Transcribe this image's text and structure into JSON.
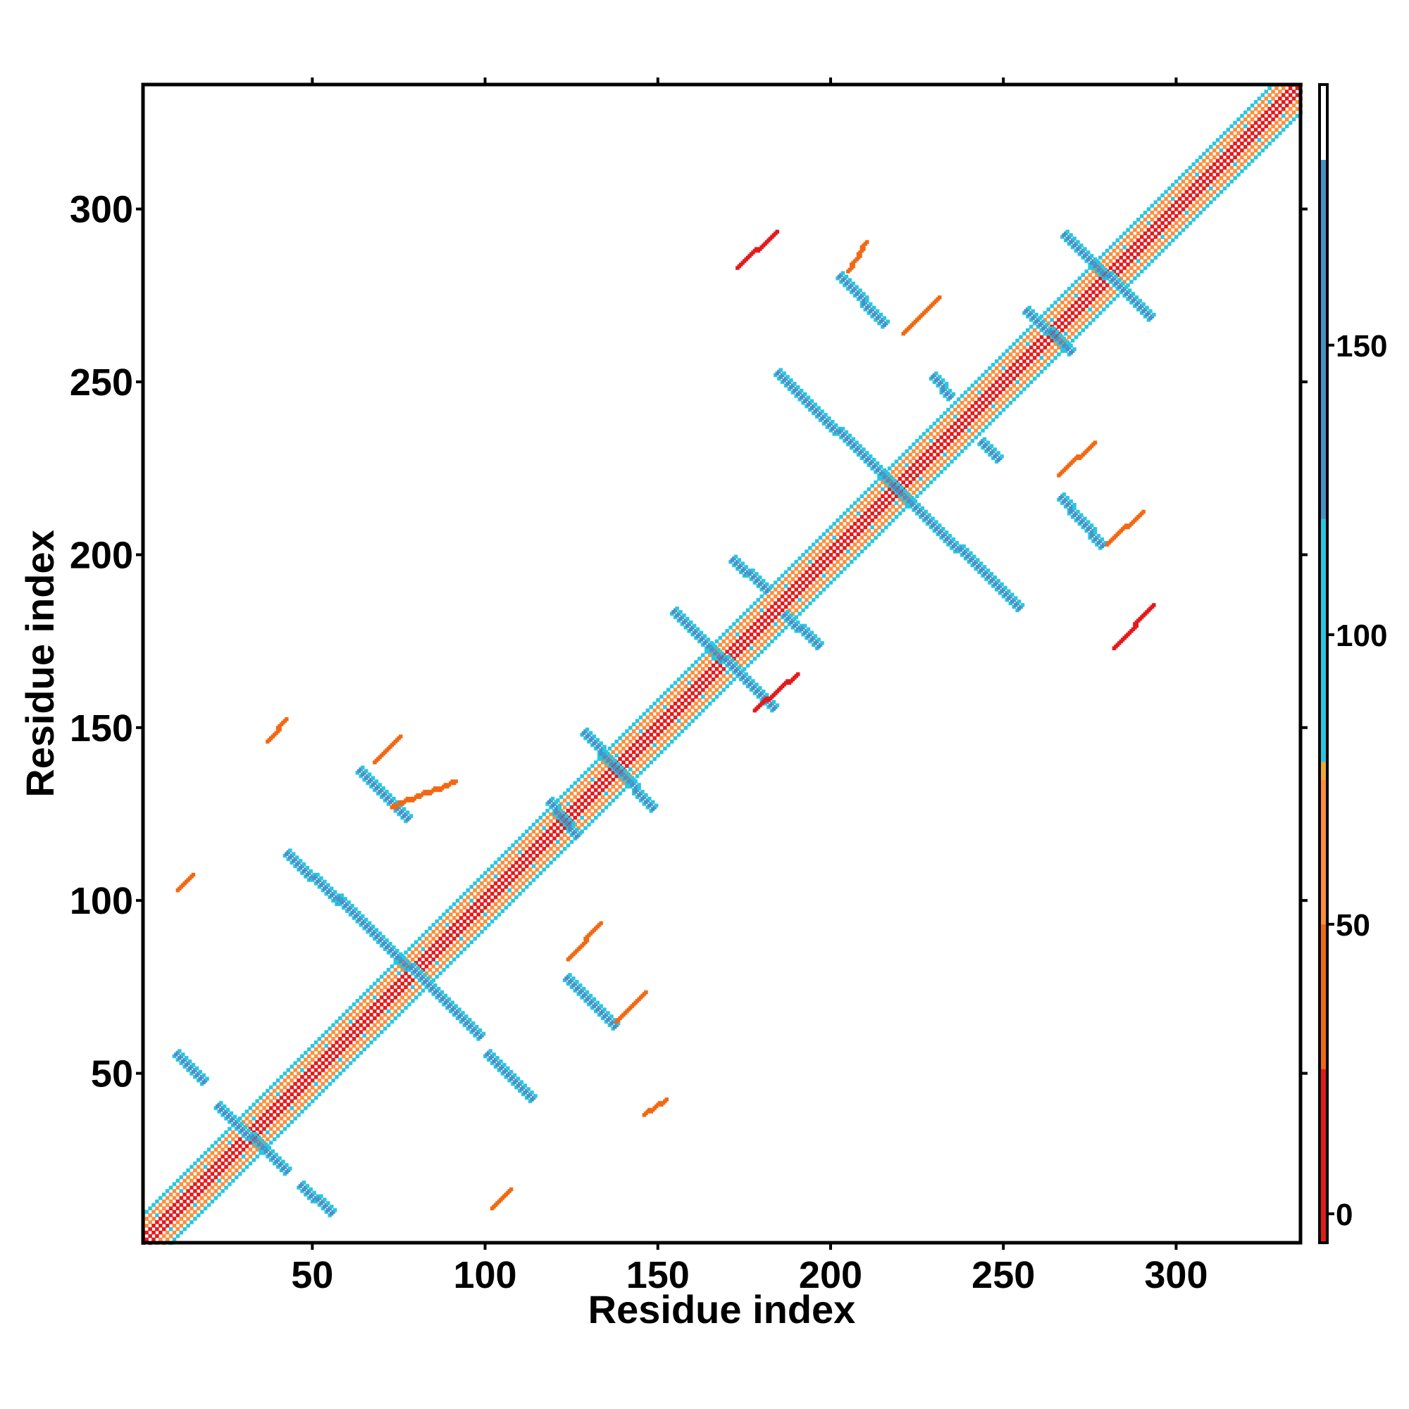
{
  "chart_data": {
    "type": "heatmap",
    "title": "",
    "xlabel": "Residue index",
    "ylabel": "Residue index",
    "xlim": [
      1,
      336
    ],
    "ylim": [
      1,
      336
    ],
    "xticks": [
      50,
      100,
      150,
      200,
      250,
      300
    ],
    "yticks": [
      50,
      100,
      150,
      200,
      250,
      300
    ],
    "colorbar": {
      "ticks": [
        0,
        50,
        100,
        150
      ],
      "range": [
        -5,
        195
      ],
      "segments": [
        {
          "from": -5,
          "to": 25,
          "color": "#e31a1c"
        },
        {
          "from": 25,
          "to": 50,
          "color": "#f16913"
        },
        {
          "from": 50,
          "to": 75,
          "color": "#fd8d3c"
        },
        {
          "from": 75,
          "to": 78,
          "color": "#f0a830"
        },
        {
          "from": 78,
          "to": 120,
          "color": "#29c6e0"
        },
        {
          "from": 120,
          "to": 182,
          "color": "#4a90c8"
        },
        {
          "from": 182,
          "to": 195,
          "color": "#ffffff"
        }
      ]
    },
    "diagonal": {
      "from": 1,
      "to": 336,
      "colors": [
        "#e31a1c",
        "#fd8d3c",
        "#29c6e0"
      ]
    },
    "antiparallel_strands": [
      {
        "x1": 10,
        "y1": 55,
        "x2": 18,
        "y2": 47,
        "value": 150
      },
      {
        "x1": 22,
        "y1": 40,
        "x2": 42,
        "y2": 21,
        "value": 150
      },
      {
        "x1": 46,
        "y1": 17,
        "x2": 55,
        "y2": 9,
        "value": 150
      },
      {
        "x1": 42,
        "y1": 113,
        "x2": 57,
        "y2": 99,
        "value": 150
      },
      {
        "x1": 57,
        "y1": 100,
        "x2": 98,
        "y2": 60,
        "value": 150
      },
      {
        "x1": 100,
        "y1": 55,
        "x2": 113,
        "y2": 42,
        "value": 150
      },
      {
        "x1": 63,
        "y1": 137,
        "x2": 77,
        "y2": 123,
        "value": 150
      },
      {
        "x1": 123,
        "y1": 77,
        "x2": 137,
        "y2": 63,
        "value": 150
      },
      {
        "x1": 118,
        "y1": 128,
        "x2": 126,
        "y2": 118,
        "value": 150
      },
      {
        "x1": 128,
        "y1": 148,
        "x2": 148,
        "y2": 126,
        "value": 150
      },
      {
        "x1": 154,
        "y1": 183,
        "x2": 183,
        "y2": 155,
        "value": 150
      },
      {
        "x1": 171,
        "y1": 198,
        "x2": 181,
        "y2": 189,
        "value": 150
      },
      {
        "x1": 186,
        "y1": 182,
        "x2": 196,
        "y2": 173,
        "value": 150
      },
      {
        "x1": 184,
        "y1": 252,
        "x2": 254,
        "y2": 184,
        "value": 150
      },
      {
        "x1": 202,
        "y1": 280,
        "x2": 215,
        "y2": 266,
        "value": 150
      },
      {
        "x1": 229,
        "y1": 251,
        "x2": 234,
        "y2": 245,
        "value": 150
      },
      {
        "x1": 243,
        "y1": 232,
        "x2": 248,
        "y2": 227,
        "value": 150
      },
      {
        "x1": 266,
        "y1": 216,
        "x2": 278,
        "y2": 202,
        "value": 150
      },
      {
        "x1": 267,
        "y1": 292,
        "x2": 292,
        "y2": 268,
        "value": 150
      },
      {
        "x1": 256,
        "y1": 270,
        "x2": 269,
        "y2": 258,
        "value": 150
      }
    ],
    "parallel_contacts": [
      {
        "x1": 173,
        "y1": 283,
        "x2": 184,
        "y2": 293,
        "value": 10
      },
      {
        "x1": 205,
        "y1": 282,
        "x2": 210,
        "y2": 290,
        "value": 45
      },
      {
        "x1": 221,
        "y1": 264,
        "x2": 231,
        "y2": 274,
        "value": 45
      },
      {
        "x1": 73,
        "y1": 127,
        "x2": 91,
        "y2": 134,
        "value": 45
      },
      {
        "x1": 68,
        "y1": 140,
        "x2": 75,
        "y2": 147,
        "value": 45
      },
      {
        "x1": 37,
        "y1": 146,
        "x2": 42,
        "y2": 152,
        "value": 45
      },
      {
        "x1": 11,
        "y1": 103,
        "x2": 15,
        "y2": 107,
        "value": 45
      },
      {
        "x1": 124,
        "y1": 83,
        "x2": 133,
        "y2": 93,
        "value": 45
      },
      {
        "x1": 138,
        "y1": 65,
        "x2": 146,
        "y2": 73,
        "value": 45
      },
      {
        "x1": 146,
        "y1": 38,
        "x2": 152,
        "y2": 42,
        "value": 45
      },
      {
        "x1": 102,
        "y1": 11,
        "x2": 107,
        "y2": 16,
        "value": 45
      },
      {
        "x1": 266,
        "y1": 223,
        "x2": 276,
        "y2": 232,
        "value": 45
      },
      {
        "x1": 280,
        "y1": 203,
        "x2": 290,
        "y2": 212,
        "value": 45
      },
      {
        "x1": 282,
        "y1": 173,
        "x2": 293,
        "y2": 185,
        "value": 10
      },
      {
        "x1": 178,
        "y1": 155,
        "x2": 190,
        "y2": 165,
        "value": 10
      }
    ]
  }
}
